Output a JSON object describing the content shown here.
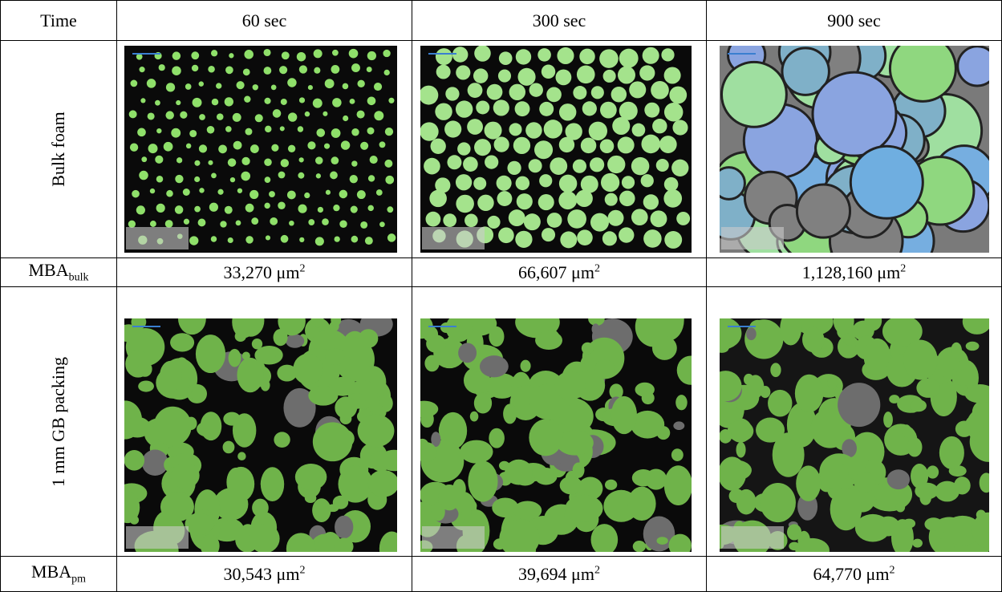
{
  "table": {
    "header": [
      "Time",
      "60 sec",
      "300 sec",
      "900 sec"
    ],
    "rows": [
      {
        "label": "Bulk foam"
      },
      {
        "label": "MBA",
        "label_sub": "bulk",
        "values": [
          {
            "text": "33,270 μm",
            "sup": "2"
          },
          {
            "text": "66,607 μm",
            "sup": "2"
          },
          {
            "text": "1,128,160 μm",
            "sup": "2"
          }
        ]
      },
      {
        "label": "1 mm GB packing"
      },
      {
        "label": "MBA",
        "label_sub": "pm",
        "values": [
          {
            "text": "30,543 μm",
            "sup": "2"
          },
          {
            "text": "39,694 μm",
            "sup": "2"
          },
          {
            "text": "64,770 μm",
            "sup": "2"
          }
        ]
      }
    ]
  }
}
